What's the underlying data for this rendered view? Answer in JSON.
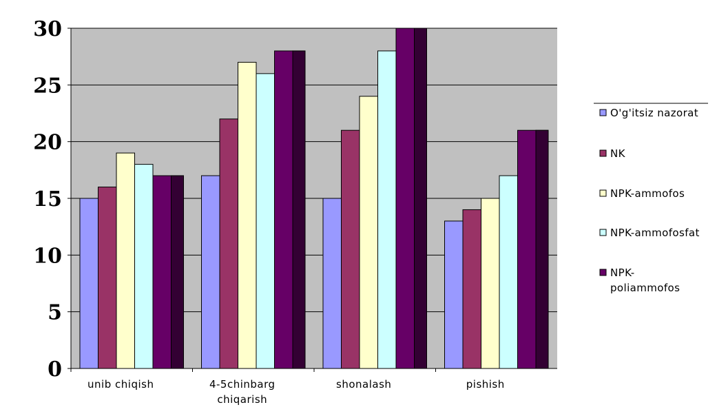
{
  "chart_data": {
    "type": "bar",
    "categories": [
      [
        "unib chiqish"
      ],
      [
        "4-5chinbarg",
        "chiqarish"
      ],
      [
        "shonalash"
      ],
      [
        "pishish"
      ]
    ],
    "series": [
      {
        "name": [
          "O'g'itsiz nazorat"
        ],
        "color": "#9999ff",
        "side_color": "#9999ff",
        "values": [
          15,
          17,
          15,
          13
        ]
      },
      {
        "name": [
          "NK"
        ],
        "color": "#993366",
        "side_color": "#993366",
        "values": [
          16,
          22,
          21,
          14
        ]
      },
      {
        "name": [
          "NPK-ammofos"
        ],
        "color": "#ffffcc",
        "side_color": "#808066",
        "values": [
          19,
          27,
          24,
          15
        ]
      },
      {
        "name": [
          "NPK-ammofosfat"
        ],
        "color": "#ccffff",
        "side_color": "#669999",
        "values": [
          18,
          26,
          28,
          17
        ]
      },
      {
        "name": [
          "NPK-",
          "poliammofos"
        ],
        "color": "#660066",
        "side_color": "#330033",
        "values": [
          17,
          28,
          30,
          21
        ]
      }
    ],
    "yticks": [
      "0",
      "5",
      "10",
      "15",
      "20",
      "25",
      "30"
    ],
    "ylim": [
      0,
      30
    ],
    "grid": true,
    "plot_background": "#c0c0c0",
    "legend_position": "right"
  }
}
